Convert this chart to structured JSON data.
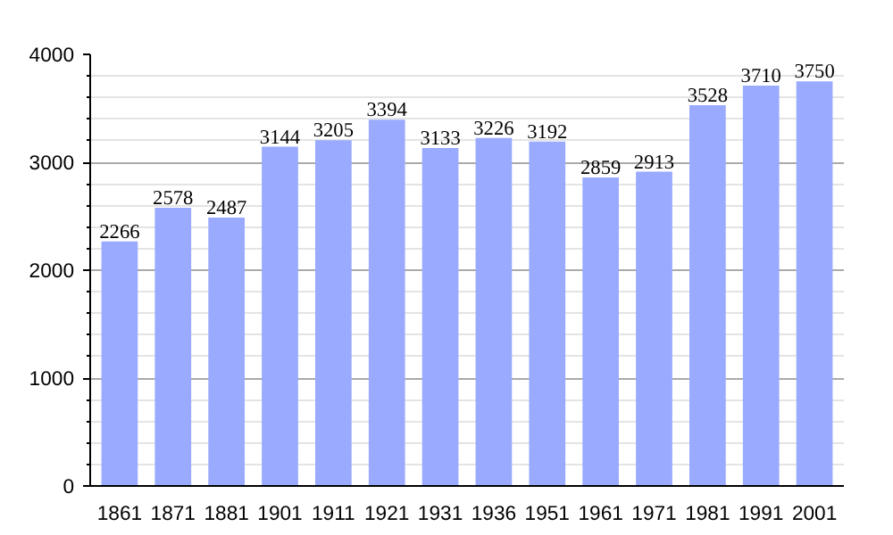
{
  "chart_data": {
    "type": "bar",
    "categories": [
      "1861",
      "1871",
      "1881",
      "1901",
      "1911",
      "1921",
      "1931",
      "1936",
      "1951",
      "1961",
      "1971",
      "1981",
      "1991",
      "2001"
    ],
    "values": [
      2266,
      2578,
      2487,
      3144,
      3205,
      3394,
      3133,
      3226,
      3192,
      2859,
      2913,
      3528,
      3710,
      3750
    ],
    "color": "#99aaff",
    "ylim": [
      0,
      4000
    ],
    "yticks": [
      0,
      1000,
      2000,
      3000,
      4000
    ],
    "grid": "y",
    "data_labels": true
  }
}
